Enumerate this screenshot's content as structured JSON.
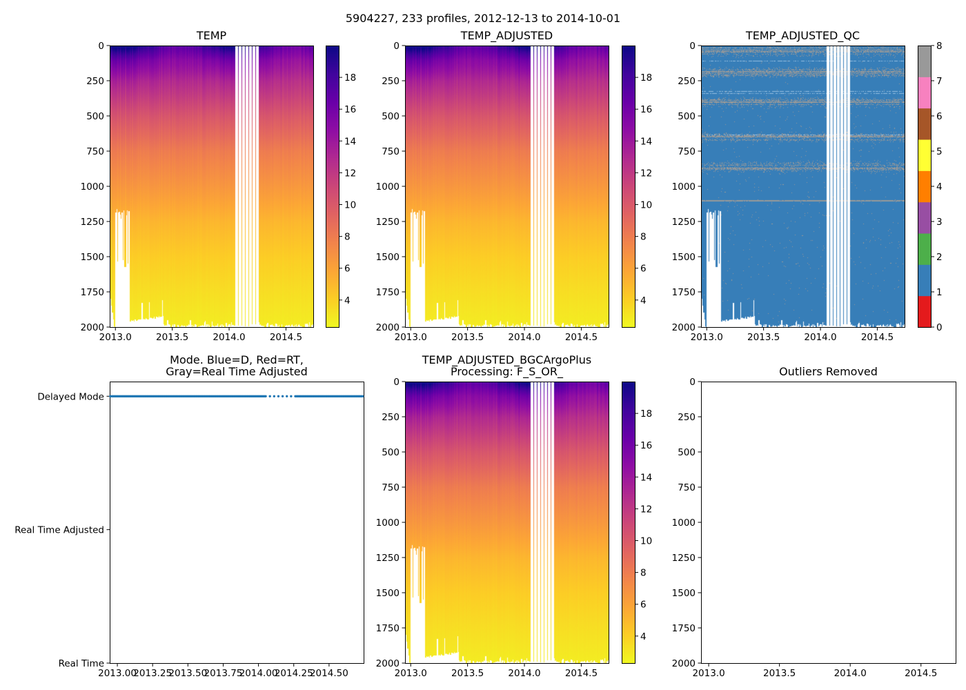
{
  "figure_title": "5904227, 233 profiles, 2012-12-13 to 2014-10-01",
  "chart_data": [
    {
      "id": "temp",
      "type": "heatmap",
      "title": [
        "TEMP"
      ],
      "xlim": [
        2012.95,
        2014.74
      ],
      "ylim": [
        2000,
        0
      ],
      "xticks": [
        2013.0,
        2013.5,
        2014.0,
        2014.5
      ],
      "xtick_labels": [
        "2013.0",
        "2013.5",
        "2014.0",
        "2014.5"
      ],
      "yticks": [
        0,
        250,
        500,
        750,
        1000,
        1250,
        1500,
        1750,
        2000
      ],
      "ytick_labels": [
        "0",
        "250",
        "500",
        "750",
        "1000",
        "1250",
        "1500",
        "1750",
        "2000"
      ],
      "cmap": "plasma_r",
      "value_field": "temperature",
      "colorbar": {
        "range": [
          2.3,
          20.0
        ],
        "ticks": [
          4,
          6,
          8,
          10,
          12,
          14,
          16,
          18
        ],
        "tick_labels": [
          "4",
          "6",
          "8",
          "10",
          "12",
          "14",
          "16",
          "18"
        ]
      }
    },
    {
      "id": "temp_adjusted",
      "type": "heatmap",
      "title": [
        "TEMP_ADJUSTED"
      ],
      "xlim": [
        2012.95,
        2014.74
      ],
      "ylim": [
        2000,
        0
      ],
      "xticks": [
        2013.0,
        2013.5,
        2014.0,
        2014.5
      ],
      "xtick_labels": [
        "2013.0",
        "2013.5",
        "2014.0",
        "2014.5"
      ],
      "yticks": [
        0,
        250,
        500,
        750,
        1000,
        1250,
        1500,
        1750,
        2000
      ],
      "ytick_labels": [
        "0",
        "250",
        "500",
        "750",
        "1000",
        "1250",
        "1500",
        "1750",
        "2000"
      ],
      "cmap": "plasma_r",
      "value_field": "temperature",
      "colorbar": {
        "range": [
          2.3,
          20.0
        ],
        "ticks": [
          4,
          6,
          8,
          10,
          12,
          14,
          16,
          18
        ],
        "tick_labels": [
          "4",
          "6",
          "8",
          "10",
          "12",
          "14",
          "16",
          "18"
        ]
      }
    },
    {
      "id": "temp_adjusted_qc",
      "type": "heatmap",
      "title": [
        "TEMP_ADJUSTED_QC"
      ],
      "xlim": [
        2012.95,
        2014.74
      ],
      "ylim": [
        2000,
        0
      ],
      "xticks": [
        2013.0,
        2013.5,
        2014.0,
        2014.5
      ],
      "xtick_labels": [
        "2013.0",
        "2013.5",
        "2014.0",
        "2014.5"
      ],
      "yticks": [
        0,
        250,
        500,
        750,
        1000,
        1250,
        1500,
        1750,
        2000
      ],
      "ytick_labels": [
        "0",
        "250",
        "500",
        "750",
        "1000",
        "1250",
        "1500",
        "1750",
        "2000"
      ],
      "value_field": "qc",
      "dominant_flag": 1,
      "secondary_flag": 8,
      "qc_bands_depth": [
        30,
        190,
        400,
        650,
        860,
        1100
      ],
      "colorbar": {
        "range": [
          0,
          8
        ],
        "ticks": [
          0,
          1,
          2,
          3,
          4,
          5,
          6,
          7,
          8
        ],
        "tick_labels": [
          "0",
          "1",
          "2",
          "3",
          "4",
          "5",
          "6",
          "7",
          "8"
        ],
        "colors": [
          "#e41a1c",
          "#377eb8",
          "#4daf4a",
          "#984ea3",
          "#ff7f00",
          "#ffff33",
          "#a65628",
          "#f781bf",
          "#999999"
        ]
      }
    },
    {
      "id": "mode",
      "type": "scatter",
      "title": [
        "Mode. Blue=D, Red=RT,",
        "Gray=Real Time Adjusted"
      ],
      "xlim": [
        2012.946,
        2014.745
      ],
      "ylim": [
        0,
        2.11
      ],
      "xticks": [
        2013.0,
        2013.25,
        2013.5,
        2013.75,
        2014.0,
        2014.25,
        2014.5
      ],
      "xtick_labels": [
        "2013.00",
        "2013.25",
        "2013.50",
        "2013.75",
        "2014.00",
        "2014.25",
        "2014.50"
      ],
      "yticks": [
        0,
        1,
        2
      ],
      "ytick_labels": [
        "Real Time",
        "Real Time Adjusted",
        "Delayed Mode"
      ],
      "series": [
        {
          "name": "Delayed Mode",
          "y": 2,
          "count": 233,
          "x_range": [
            2012.95,
            2014.74
          ],
          "color": "#1f77b4"
        }
      ]
    },
    {
      "id": "temp_adjusted_bgcargoplus",
      "type": "heatmap",
      "title": [
        "TEMP_ADJUSTED_BGCArgoPlus",
        "Processing: F_S_OR_"
      ],
      "xlim": [
        2012.95,
        2014.74
      ],
      "ylim": [
        2000,
        0
      ],
      "xticks": [
        2013.0,
        2013.5,
        2014.0,
        2014.5
      ],
      "xtick_labels": [
        "2013.0",
        "2013.5",
        "2014.0",
        "2014.5"
      ],
      "yticks": [
        0,
        250,
        500,
        750,
        1000,
        1250,
        1500,
        1750,
        2000
      ],
      "ytick_labels": [
        "0",
        "250",
        "500",
        "750",
        "1000",
        "1250",
        "1500",
        "1750",
        "2000"
      ],
      "cmap": "plasma_r",
      "value_field": "temperature",
      "colorbar": {
        "range": [
          2.3,
          20.0
        ],
        "ticks": [
          4,
          6,
          8,
          10,
          12,
          14,
          16,
          18
        ],
        "tick_labels": [
          "4",
          "6",
          "8",
          "10",
          "12",
          "14",
          "16",
          "18"
        ]
      }
    },
    {
      "id": "outliers_removed",
      "type": "scatter",
      "title": [
        "Outliers Removed"
      ],
      "xlim": [
        2012.946,
        2014.745
      ],
      "ylim": [
        2000,
        0
      ],
      "xticks": [
        2013.0,
        2013.5,
        2014.0,
        2014.5
      ],
      "xtick_labels": [
        "2013.0",
        "2013.5",
        "2014.0",
        "2014.5"
      ],
      "yticks": [
        0,
        250,
        500,
        750,
        1000,
        1250,
        1500,
        1750,
        2000
      ],
      "ytick_labels": [
        "0",
        "250",
        "500",
        "750",
        "1000",
        "1250",
        "1500",
        "1750",
        "2000"
      ],
      "series": []
    }
  ],
  "field_model": {
    "profile_time_range": [
      2012.95,
      2014.74
    ],
    "sparse_profile_period": [
      2014.05,
      2014.26
    ],
    "temperature_vs_depth": [
      [
        0,
        18.5
      ],
      [
        100,
        15.5
      ],
      [
        250,
        13
      ],
      [
        500,
        10.2
      ],
      [
        750,
        8
      ],
      [
        1000,
        6.6
      ],
      [
        1250,
        5.1
      ],
      [
        1500,
        4.1
      ],
      [
        1750,
        3.4
      ],
      [
        2000,
        2.8
      ]
    ]
  }
}
